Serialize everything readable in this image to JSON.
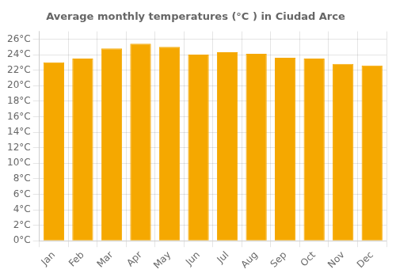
{
  "chart_data": {
    "type": "bar",
    "title": "Average monthly temperatures (°C ) in Ciudad Arce",
    "categories": [
      "Jan",
      "Feb",
      "Mar",
      "Apr",
      "May",
      "Jun",
      "Jul",
      "Aug",
      "Sep",
      "Oct",
      "Nov",
      "Dec"
    ],
    "values": [
      23.0,
      23.5,
      24.8,
      25.4,
      25.0,
      24.0,
      24.3,
      24.1,
      23.6,
      23.5,
      22.8,
      22.6
    ],
    "color": "#F5A800",
    "ylim": [
      0,
      27
    ],
    "yticks": [
      {
        "value": 0,
        "label": "0°C"
      },
      {
        "value": 2,
        "label": "2°C"
      },
      {
        "value": 4,
        "label": "4°C"
      },
      {
        "value": 6,
        "label": "6°C"
      },
      {
        "value": 8,
        "label": "8°C"
      },
      {
        "value": 10,
        "label": "10°C"
      },
      {
        "value": 12,
        "label": "12°C"
      },
      {
        "value": 14,
        "label": "14°C"
      },
      {
        "value": 16,
        "label": "16°C"
      },
      {
        "value": 18,
        "label": "18°C"
      },
      {
        "value": 20,
        "label": "20°C"
      },
      {
        "value": 22,
        "label": "22°C"
      },
      {
        "value": 24,
        "label": "24°C"
      },
      {
        "value": 26,
        "label": "26°C"
      }
    ],
    "grid": true
  }
}
